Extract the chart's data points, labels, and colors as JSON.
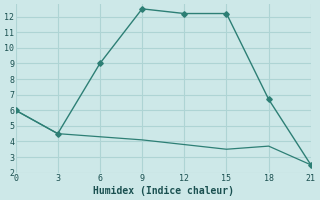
{
  "line1_x": [
    0,
    3,
    6,
    9,
    12,
    15,
    18,
    21
  ],
  "line1_y": [
    6,
    4.5,
    9,
    12.5,
    12.2,
    12.2,
    6.7,
    2.5
  ],
  "line2_x": [
    0,
    3,
    6,
    9,
    12,
    15,
    18,
    21
  ],
  "line2_y": [
    6,
    4.5,
    4.3,
    4.1,
    3.8,
    3.5,
    3.7,
    2.5
  ],
  "line_color": "#2d7f75",
  "bg_color": "#cde8e8",
  "grid_color": "#aed4d4",
  "xlabel": "Humidex (Indice chaleur)",
  "xlim": [
    0,
    21
  ],
  "ylim": [
    2,
    12.8
  ],
  "xticks": [
    0,
    3,
    6,
    9,
    12,
    15,
    18,
    21
  ],
  "yticks": [
    2,
    3,
    4,
    5,
    6,
    7,
    8,
    9,
    10,
    11,
    12
  ],
  "font_color": "#1a5050",
  "tick_fontsize": 6.0,
  "xlabel_fontsize": 7.0
}
